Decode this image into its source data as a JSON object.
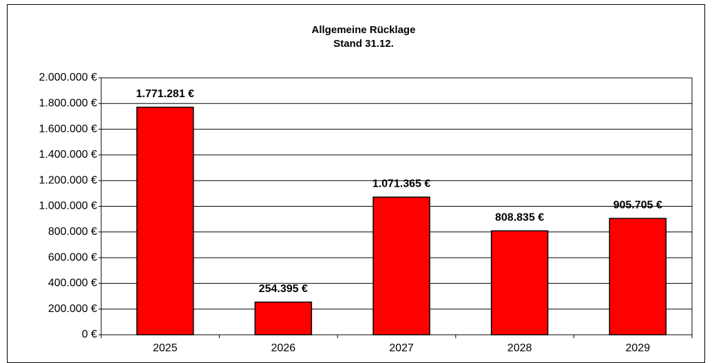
{
  "chart_data": {
    "type": "bar",
    "title": "Allgemeine Rücklage",
    "subtitle": "Stand 31.12.",
    "categories": [
      "2025",
      "2026",
      "2027",
      "2028",
      "2029"
    ],
    "values": [
      1771281,
      254395,
      1071365,
      808835,
      905705
    ],
    "value_labels": [
      "1.771.281 €",
      "254.395 €",
      "1.071.365 €",
      "808.835 €",
      "905.705 €"
    ],
    "color": "#ff0000",
    "ylim": [
      0,
      2000000
    ],
    "yticks": [
      {
        "value": 0,
        "label": "0 €"
      },
      {
        "value": 200000,
        "label": "200.000 €"
      },
      {
        "value": 400000,
        "label": "400.000 €"
      },
      {
        "value": 600000,
        "label": "600.000 €"
      },
      {
        "value": 800000,
        "label": "800.000 €"
      },
      {
        "value": 1000000,
        "label": "1.000.000 €"
      },
      {
        "value": 1200000,
        "label": "1.200.000 €"
      },
      {
        "value": 1400000,
        "label": "1.400.000 €"
      },
      {
        "value": 1600000,
        "label": "1.600.000 €"
      },
      {
        "value": 1800000,
        "label": "1.800.000 €"
      },
      {
        "value": 2000000,
        "label": "2.000.000 €"
      }
    ],
    "grid": true
  }
}
